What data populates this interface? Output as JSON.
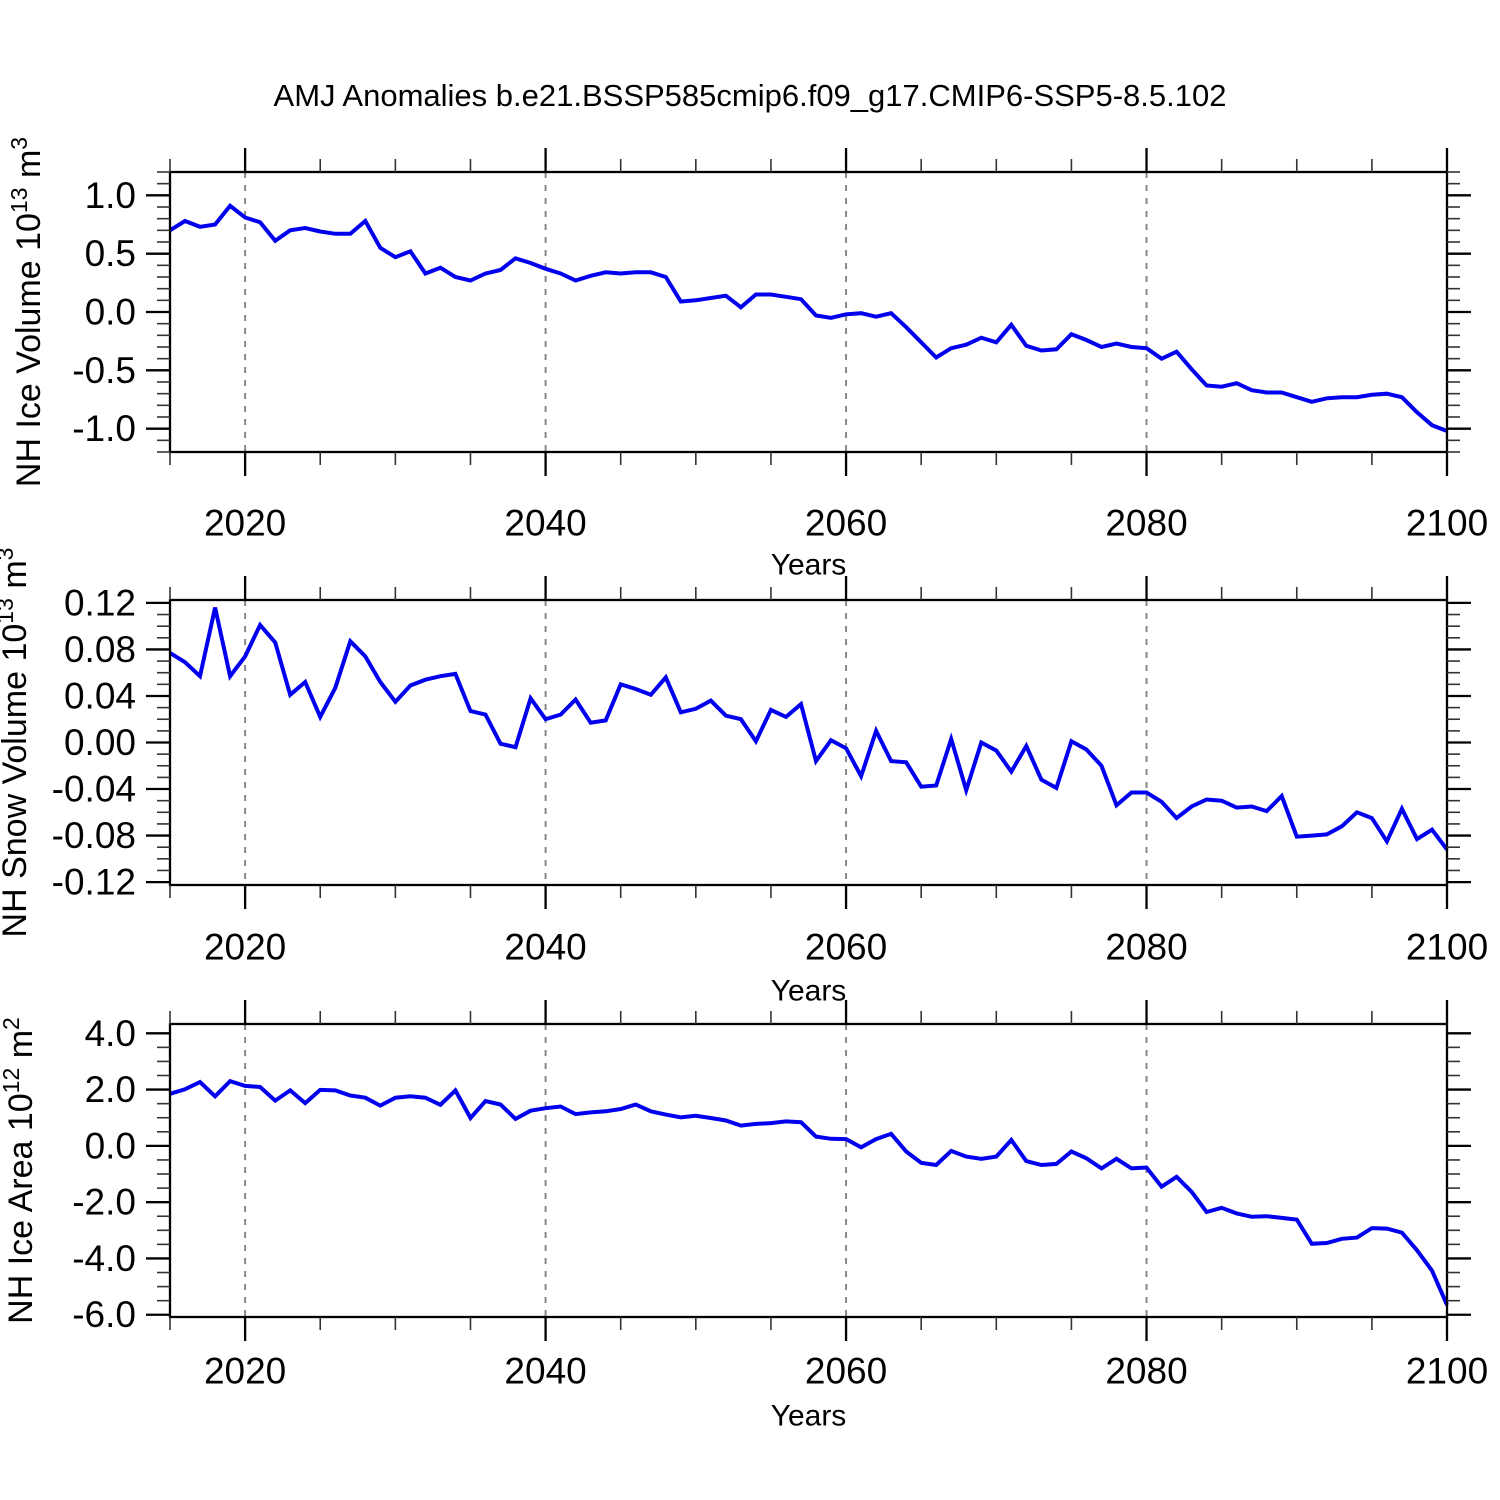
{
  "title": "AMJ Anomalies b.e21.BSSP585cmip6.f09_g17.CMIP6-SSP5-8.5.102",
  "colors": {
    "series_line": "#0000EE",
    "axis": "#000000",
    "gridline": "#888888",
    "minor_tick": "#333333",
    "background": "#ffffff",
    "text": "#000000"
  },
  "chart_data": [
    {
      "type": "line",
      "id": "nh-ice-volume",
      "ylabel_segments": [
        [
          "text",
          "NH Ice Volume 10"
        ],
        [
          "sup",
          "13"
        ],
        [
          "text",
          " m"
        ],
        [
          "sup",
          "3"
        ]
      ],
      "xlabel": "Years",
      "xlim": [
        2015,
        2100
      ],
      "ylim": [
        -1.2,
        1.2
      ],
      "x_start": 2015,
      "x_step": 1,
      "x_end": 2100,
      "x_major_ticks": [
        2020,
        2040,
        2060,
        2080,
        2100
      ],
      "x_major_labels": [
        "2020",
        "2040",
        "2060",
        "2080",
        "2100"
      ],
      "x_minor_step": 5,
      "x_gridlines": [
        2020,
        2040,
        2060,
        2080
      ],
      "gridline_style": "dashed-vertical",
      "legend": "none",
      "y_major_ticks": [
        1.0,
        0.5,
        0.0,
        -0.5,
        -1.0
      ],
      "y_major_labels": [
        "1.0",
        "0.5",
        "0.0",
        "-0.5",
        "-1.0"
      ],
      "y_minor_step": 0.1,
      "values": [
        0.7,
        0.78,
        0.73,
        0.75,
        0.91,
        0.81,
        0.77,
        0.61,
        0.7,
        0.72,
        0.69,
        0.67,
        0.67,
        0.78,
        0.55,
        0.47,
        0.52,
        0.33,
        0.38,
        0.3,
        0.27,
        0.33,
        0.36,
        0.46,
        0.42,
        0.37,
        0.33,
        0.27,
        0.31,
        0.34,
        0.33,
        0.34,
        0.34,
        0.3,
        0.09,
        0.1,
        0.12,
        0.14,
        0.04,
        0.15,
        0.15,
        0.13,
        0.11,
        -0.03,
        -0.05,
        -0.02,
        -0.01,
        -0.04,
        -0.01,
        -0.13,
        -0.26,
        -0.39,
        -0.31,
        -0.28,
        -0.22,
        -0.26,
        -0.11,
        -0.29,
        -0.33,
        -0.32,
        -0.19,
        -0.24,
        -0.3,
        -0.27,
        -0.3,
        -0.31,
        -0.4,
        -0.34,
        -0.49,
        -0.63,
        -0.64,
        -0.61,
        -0.67,
        -0.69,
        -0.69,
        -0.73,
        -0.77,
        -0.74,
        -0.73,
        -0.73,
        -0.71,
        -0.7,
        -0.73,
        -0.86,
        -0.97,
        -1.02
      ]
    },
    {
      "type": "line",
      "id": "nh-snow-volume",
      "ylabel_segments": [
        [
          "text",
          "NH Snow Volume 10"
        ],
        [
          "sup",
          "13"
        ],
        [
          "text",
          " m"
        ],
        [
          "sup",
          "3"
        ]
      ],
      "xlabel": "Years",
      "xlim": [
        2015,
        2100
      ],
      "ylim": [
        -0.1225,
        0.1225
      ],
      "x_start": 2015,
      "x_step": 1,
      "x_end": 2100,
      "x_major_ticks": [
        2020,
        2040,
        2060,
        2080,
        2100
      ],
      "x_major_labels": [
        "2020",
        "2040",
        "2060",
        "2080",
        "2100"
      ],
      "x_minor_step": 5,
      "x_gridlines": [
        2020,
        2040,
        2060,
        2080
      ],
      "gridline_style": "dashed-vertical",
      "legend": "none",
      "y_major_ticks": [
        0.12,
        0.08,
        0.04,
        0.0,
        -0.04,
        -0.08,
        -0.12
      ],
      "y_major_labels": [
        "0.12",
        "0.08",
        "0.04",
        "0.00",
        "-0.04",
        "-0.08",
        "-0.12"
      ],
      "y_minor_step": 0.01,
      "values": [
        0.077,
        0.069,
        0.057,
        0.116,
        0.057,
        0.074,
        0.101,
        0.086,
        0.041,
        0.052,
        0.022,
        0.047,
        0.087,
        0.074,
        0.052,
        0.035,
        0.049,
        0.054,
        0.057,
        0.059,
        0.027,
        0.024,
        -0.001,
        -0.004,
        0.038,
        0.02,
        0.024,
        0.037,
        0.017,
        0.019,
        0.05,
        0.046,
        0.041,
        0.056,
        0.026,
        0.029,
        0.036,
        0.023,
        0.02,
        0.001,
        0.028,
        0.022,
        0.033,
        -0.016,
        0.002,
        -0.005,
        -0.029,
        0.01,
        -0.016,
        -0.017,
        -0.038,
        -0.037,
        0.003,
        -0.041,
        0.0,
        -0.007,
        -0.025,
        -0.003,
        -0.032,
        -0.039,
        0.001,
        -0.006,
        -0.02,
        -0.054,
        -0.043,
        -0.043,
        -0.051,
        -0.065,
        -0.055,
        -0.049,
        -0.05,
        -0.056,
        -0.055,
        -0.059,
        -0.046,
        -0.081,
        -0.08,
        -0.079,
        -0.072,
        -0.06,
        -0.065,
        -0.085,
        -0.057,
        -0.083,
        -0.075,
        -0.092
      ]
    },
    {
      "type": "line",
      "id": "nh-ice-area",
      "ylabel_segments": [
        [
          "text",
          "NH Ice Area 10"
        ],
        [
          "sup",
          "12"
        ],
        [
          "text",
          " m"
        ],
        [
          "sup",
          "2"
        ]
      ],
      "xlabel": "Years",
      "xlim": [
        2015,
        2100
      ],
      "ylim": [
        -6.08,
        4.33
      ],
      "x_start": 2015,
      "x_step": 1,
      "x_end": 2100,
      "x_major_ticks": [
        2020,
        2040,
        2060,
        2080,
        2100
      ],
      "x_major_labels": [
        "2020",
        "2040",
        "2060",
        "2080",
        "2100"
      ],
      "x_minor_step": 5,
      "x_gridlines": [
        2020,
        2040,
        2060,
        2080
      ],
      "gridline_style": "dashed-vertical",
      "legend": "none",
      "y_major_ticks": [
        4.0,
        2.0,
        0.0,
        -2.0,
        -4.0,
        -6.0
      ],
      "y_major_labels": [
        "4.0",
        "2.0",
        "0.0",
        "-2.0",
        "-4.0",
        "-6.0"
      ],
      "y_minor_step": 0.5,
      "values": [
        1.85,
        2.01,
        2.27,
        1.76,
        2.3,
        2.13,
        2.09,
        1.61,
        1.97,
        1.52,
        1.99,
        1.97,
        1.79,
        1.71,
        1.43,
        1.71,
        1.76,
        1.71,
        1.46,
        1.97,
        0.99,
        1.59,
        1.47,
        0.96,
        1.25,
        1.34,
        1.4,
        1.13,
        1.19,
        1.23,
        1.31,
        1.47,
        1.23,
        1.11,
        1.01,
        1.07,
        0.99,
        0.9,
        0.72,
        0.78,
        0.81,
        0.87,
        0.84,
        0.33,
        0.25,
        0.24,
        -0.05,
        0.24,
        0.43,
        -0.2,
        -0.6,
        -0.68,
        -0.18,
        -0.38,
        -0.46,
        -0.38,
        0.21,
        -0.54,
        -0.68,
        -0.64,
        -0.2,
        -0.44,
        -0.8,
        -0.46,
        -0.8,
        -0.77,
        -1.45,
        -1.1,
        -1.63,
        -2.35,
        -2.2,
        -2.4,
        -2.52,
        -2.5,
        -2.56,
        -2.62,
        -3.48,
        -3.45,
        -3.3,
        -3.26,
        -2.92,
        -2.94,
        -3.08,
        -3.71,
        -4.43,
        -5.65
      ]
    }
  ]
}
